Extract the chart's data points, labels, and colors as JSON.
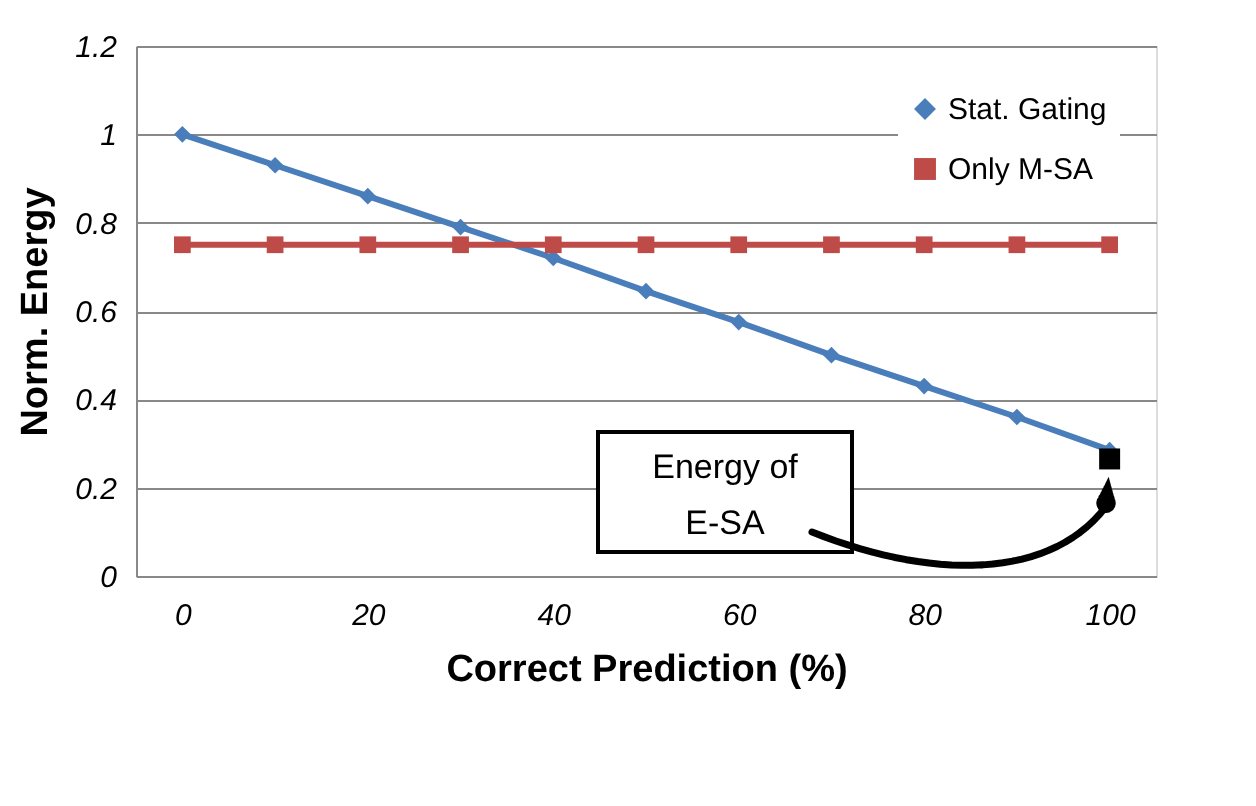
{
  "chart_data": {
    "type": "line",
    "xlabel": "Correct Prediction (%)",
    "ylabel": "Norm. Energy",
    "x": [
      0,
      10,
      20,
      30,
      40,
      50,
      60,
      70,
      80,
      90,
      100
    ],
    "series": [
      {
        "name": "Stat. Gating",
        "color": "#4a7ebb",
        "marker": "diamond",
        "values": [
          1.0,
          0.93,
          0.86,
          0.79,
          0.72,
          0.645,
          0.575,
          0.5,
          0.43,
          0.36,
          0.285
        ]
      },
      {
        "name": "Only M-SA",
        "color": "#be4b48",
        "marker": "square",
        "values": [
          0.75,
          0.75,
          0.75,
          0.75,
          0.75,
          0.75,
          0.75,
          0.75,
          0.75,
          0.75,
          0.75
        ]
      },
      {
        "type": "scatter",
        "color": "#000000",
        "marker": "square",
        "values": [
          null,
          null,
          null,
          null,
          null,
          null,
          null,
          null,
          null,
          null,
          0.265
        ]
      }
    ],
    "annotations": [
      "Energy of E-SA"
    ],
    "xlim": [
      -5,
      105
    ],
    "xticks": [
      0,
      20,
      40,
      60,
      80,
      100
    ],
    "ylim": [
      0,
      1.2
    ],
    "yticks": [
      0,
      0.2,
      0.4,
      0.6,
      0.8,
      1,
      1.2
    ],
    "grid": "y",
    "legend": "top right"
  }
}
